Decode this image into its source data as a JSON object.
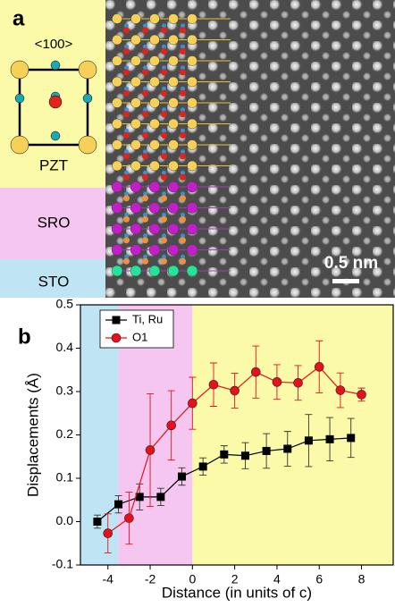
{
  "panel_a": {
    "label": "a",
    "direction": "<100>",
    "layers": [
      "PZT",
      "SRO",
      "STO"
    ],
    "scale_bar": "0.5 nm"
  },
  "chart_data": {
    "type": "line",
    "panel_label": "b",
    "x_label": "Distance (in units of c)",
    "y_label": "Displacements (Å)",
    "xlim": [
      -5.3,
      9.5
    ],
    "xticks": [
      -4,
      -2,
      0,
      2,
      4,
      6,
      8
    ],
    "ylim": [
      -0.1,
      0.5
    ],
    "yticks": [
      -0.1,
      {
        "value": 0,
        "label": "0.0"
      },
      0.1,
      0.2,
      0.3,
      0.4,
      0.5
    ],
    "regions": [
      {
        "from": -5.3,
        "to": -3.5,
        "color": "#bfe4f4"
      },
      {
        "from": -3.5,
        "to": 0,
        "color": "#f5c6ef"
      },
      {
        "from": 0,
        "to": 9.5,
        "color": "#fafaa8"
      }
    ],
    "legend": "top-left",
    "series": [
      {
        "name": "Ti, Ru",
        "color": "#000000",
        "marker": "square",
        "x": [
          -4.5,
          -3.5,
          -2.5,
          -1.5,
          -0.5,
          0.5,
          1.5,
          2.5,
          3.5,
          4.5,
          5.5,
          6.5,
          7.5
        ],
        "values": [
          0.0,
          0.04,
          0.057,
          0.057,
          0.104,
          0.127,
          0.155,
          0.152,
          0.163,
          0.168,
          0.187,
          0.19,
          0.193
        ],
        "errors": [
          0.015,
          0.02,
          0.03,
          0.02,
          0.02,
          0.02,
          0.02,
          0.03,
          0.04,
          0.04,
          0.06,
          0.05,
          0.045
        ]
      },
      {
        "name": "O1",
        "color": "#e8101a",
        "marker": "circle",
        "x": [
          -4,
          -3,
          -2,
          -1,
          0,
          1,
          2,
          3,
          4,
          5,
          6,
          7,
          8
        ],
        "values": [
          -0.027,
          0.008,
          0.165,
          0.222,
          0.273,
          0.316,
          0.302,
          0.345,
          0.322,
          0.32,
          0.357,
          0.303,
          0.293
        ],
        "errors": [
          0.045,
          0.06,
          0.13,
          0.08,
          0.06,
          0.05,
          0.04,
          0.06,
          0.04,
          0.04,
          0.06,
          0.04,
          0.015
        ]
      }
    ]
  }
}
